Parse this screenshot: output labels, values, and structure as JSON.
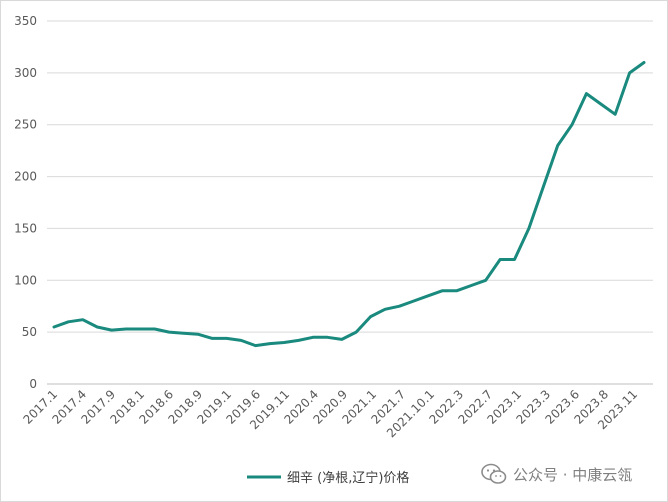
{
  "chart_data": {
    "type": "line",
    "title": "",
    "xlabel": "",
    "ylabel": "",
    "ylim": [
      0,
      350
    ],
    "y_ticks": [
      0,
      50,
      100,
      150,
      200,
      250,
      300,
      350
    ],
    "grid": "horizontal",
    "legend_position": "bottom",
    "x_tick_labels": [
      "2017.1",
      "2017.4",
      "2017.9",
      "2018.1",
      "2018.6",
      "2018.9",
      "2019.1",
      "2019.6",
      "2019.11",
      "2020.4",
      "2020.9",
      "2021.1",
      "2021.7",
      "2021.10.1",
      "2022.3",
      "2022.7",
      "2023.1",
      "2023.3",
      "2023.6",
      "2023.8",
      "2023.11"
    ],
    "series": [
      {
        "name": "细辛 (净根,辽宁)价格",
        "color": "#1a8a7e",
        "values": [
          55,
          60,
          62,
          55,
          52,
          53,
          53,
          53,
          50,
          49,
          48,
          44,
          44,
          42,
          37,
          39,
          40,
          42,
          45,
          45,
          43,
          50,
          65,
          72,
          75,
          80,
          85,
          90,
          90,
          95,
          100,
          120,
          120,
          150,
          190,
          230,
          250,
          280,
          270,
          260,
          300,
          310
        ]
      }
    ]
  },
  "watermark": {
    "icon": "wechat-icon",
    "text": "公众号 · 中康云瓴"
  }
}
